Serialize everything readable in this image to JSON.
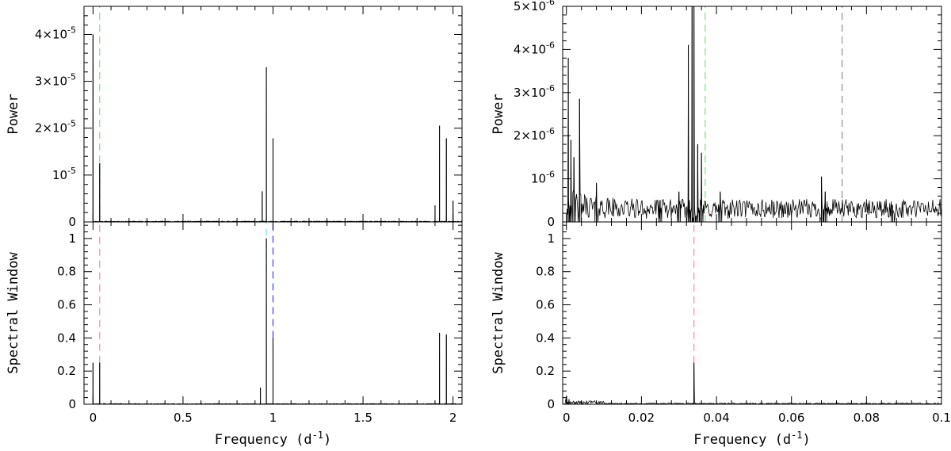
{
  "chart_data": [
    {
      "id": "left",
      "type": "line",
      "xlabel": "Frequency (d",
      "xlabel_sup": "-1",
      "xlabel_close": ")",
      "xlim": [
        -0.05,
        2.05
      ],
      "xticks": [
        0,
        0.5,
        1,
        1.5,
        2
      ],
      "xtick_labels": [
        "0",
        "0.5",
        "1",
        "1.5",
        "2"
      ],
      "top": {
        "ylabel": "Power",
        "ylim": [
          0,
          4.6e-05
        ],
        "yticks": [
          1e-05,
          2e-05,
          3e-05,
          4e-05
        ],
        "ytick_labels": [
          {
            "mant": "",
            "exp": "-5",
            "tail": "10"
          },
          {
            "mant": "2×",
            "exp": "-5",
            "tail": "10"
          },
          {
            "mant": "3×",
            "exp": "-5",
            "tail": "10"
          },
          {
            "mant": "4×",
            "exp": "-5",
            "tail": "10"
          }
        ],
        "zero_label": "0",
        "peaks": [
          [
            0.0,
            4e-05
          ],
          [
            0.037,
            1.25e-05
          ],
          [
            0.94,
            6.5e-06
          ],
          [
            0.963,
            3.3e-05
          ],
          [
            1.0,
            1.78e-05
          ],
          [
            1.9,
            3.5e-06
          ],
          [
            1.925,
            2.05e-05
          ],
          [
            1.963,
            1.78e-05
          ],
          [
            2.0,
            4.5e-06
          ]
        ],
        "vlines": [
          {
            "x": 0.037,
            "color": "#7fe07f"
          }
        ]
      },
      "bottom": {
        "ylabel": "Spectral Window",
        "ylim": [
          0,
          1.1
        ],
        "yticks": [
          0,
          0.2,
          0.4,
          0.6,
          0.8,
          1
        ],
        "ytick_labels": [
          "0",
          "0.2",
          "0.4",
          "0.6",
          "0.8",
          "1"
        ],
        "peaks": [
          [
            0.0,
            0.25
          ],
          [
            0.037,
            0.25
          ],
          [
            0.93,
            0.1
          ],
          [
            0.963,
            1.0
          ],
          [
            1.0,
            0.4
          ],
          [
            1.925,
            0.43
          ],
          [
            1.963,
            0.42
          ]
        ],
        "vlines": [
          {
            "x": 0.037,
            "color": "#ff8a8a",
            "y0": 0.25,
            "y1": 1.1
          },
          {
            "x": 0.963,
            "color": "#7fd8ff",
            "y0": 0.8,
            "y1": 1.1
          },
          {
            "x": 1.0,
            "color": "#3a3aff",
            "y0": 0.4,
            "y1": 1.1
          }
        ]
      }
    },
    {
      "id": "right",
      "type": "line",
      "xlabel": "Frequency (d",
      "xlabel_sup": "-1",
      "xlabel_close": ")",
      "xlim": [
        -0.001,
        0.1
      ],
      "xticks": [
        0,
        0.02,
        0.04,
        0.06,
        0.08,
        0.1
      ],
      "xtick_labels": [
        "0",
        "0.02",
        "0.04",
        "0.06",
        "0.08",
        "0.1"
      ],
      "top": {
        "ylabel": "Power",
        "ylim": [
          0,
          5e-06
        ],
        "yticks": [
          1e-06,
          2e-06,
          3e-06,
          4e-06,
          5e-06
        ],
        "ytick_labels": [
          {
            "mant": "",
            "exp": "-6",
            "tail": "10"
          },
          {
            "mant": "2×",
            "exp": "-6",
            "tail": "10"
          },
          {
            "mant": "3×",
            "exp": "-6",
            "tail": "10"
          },
          {
            "mant": "4×",
            "exp": "-6",
            "tail": "10"
          },
          {
            "mant": "5×",
            "exp": "-6",
            "tail": "10"
          }
        ],
        "zero_label": "0",
        "peaks": [
          [
            0.0005,
            3.8e-06
          ],
          [
            0.0012,
            1.9e-06
          ],
          [
            0.002,
            1.5e-06
          ],
          [
            0.0035,
            2.85e-06
          ],
          [
            0.008,
            9e-07
          ],
          [
            0.025,
            5e-07
          ],
          [
            0.03,
            7e-07
          ],
          [
            0.0325,
            4.1e-06
          ],
          [
            0.0335,
            5e-06
          ],
          [
            0.034,
            5e-06
          ],
          [
            0.035,
            1.8e-06
          ],
          [
            0.036,
            1.6e-06
          ],
          [
            0.041,
            7e-07
          ],
          [
            0.068,
            1.05e-06
          ],
          [
            0.069,
            7e-07
          ],
          [
            0.087,
            2.5e-07
          ]
        ],
        "vlines": [
          {
            "x": 0.037,
            "color": "#7fe07f"
          },
          {
            "x": 0.0735,
            "color": "#909090"
          }
        ]
      },
      "bottom": {
        "ylabel": "Spectral Window",
        "ylim": [
          0,
          1.1
        ],
        "yticks": [
          0,
          0.2,
          0.4,
          0.6,
          0.8,
          1
        ],
        "ytick_labels": [
          "0",
          "0.2",
          "0.4",
          "0.6",
          "0.8",
          "1"
        ],
        "peaks": [
          [
            0.0,
            0.05
          ],
          [
            0.0007,
            0.03
          ],
          [
            0.034,
            0.25
          ]
        ],
        "vlines": [
          {
            "x": 0.034,
            "color": "#ff8a8a",
            "y0": 0.25,
            "y1": 1.1
          }
        ]
      }
    }
  ]
}
